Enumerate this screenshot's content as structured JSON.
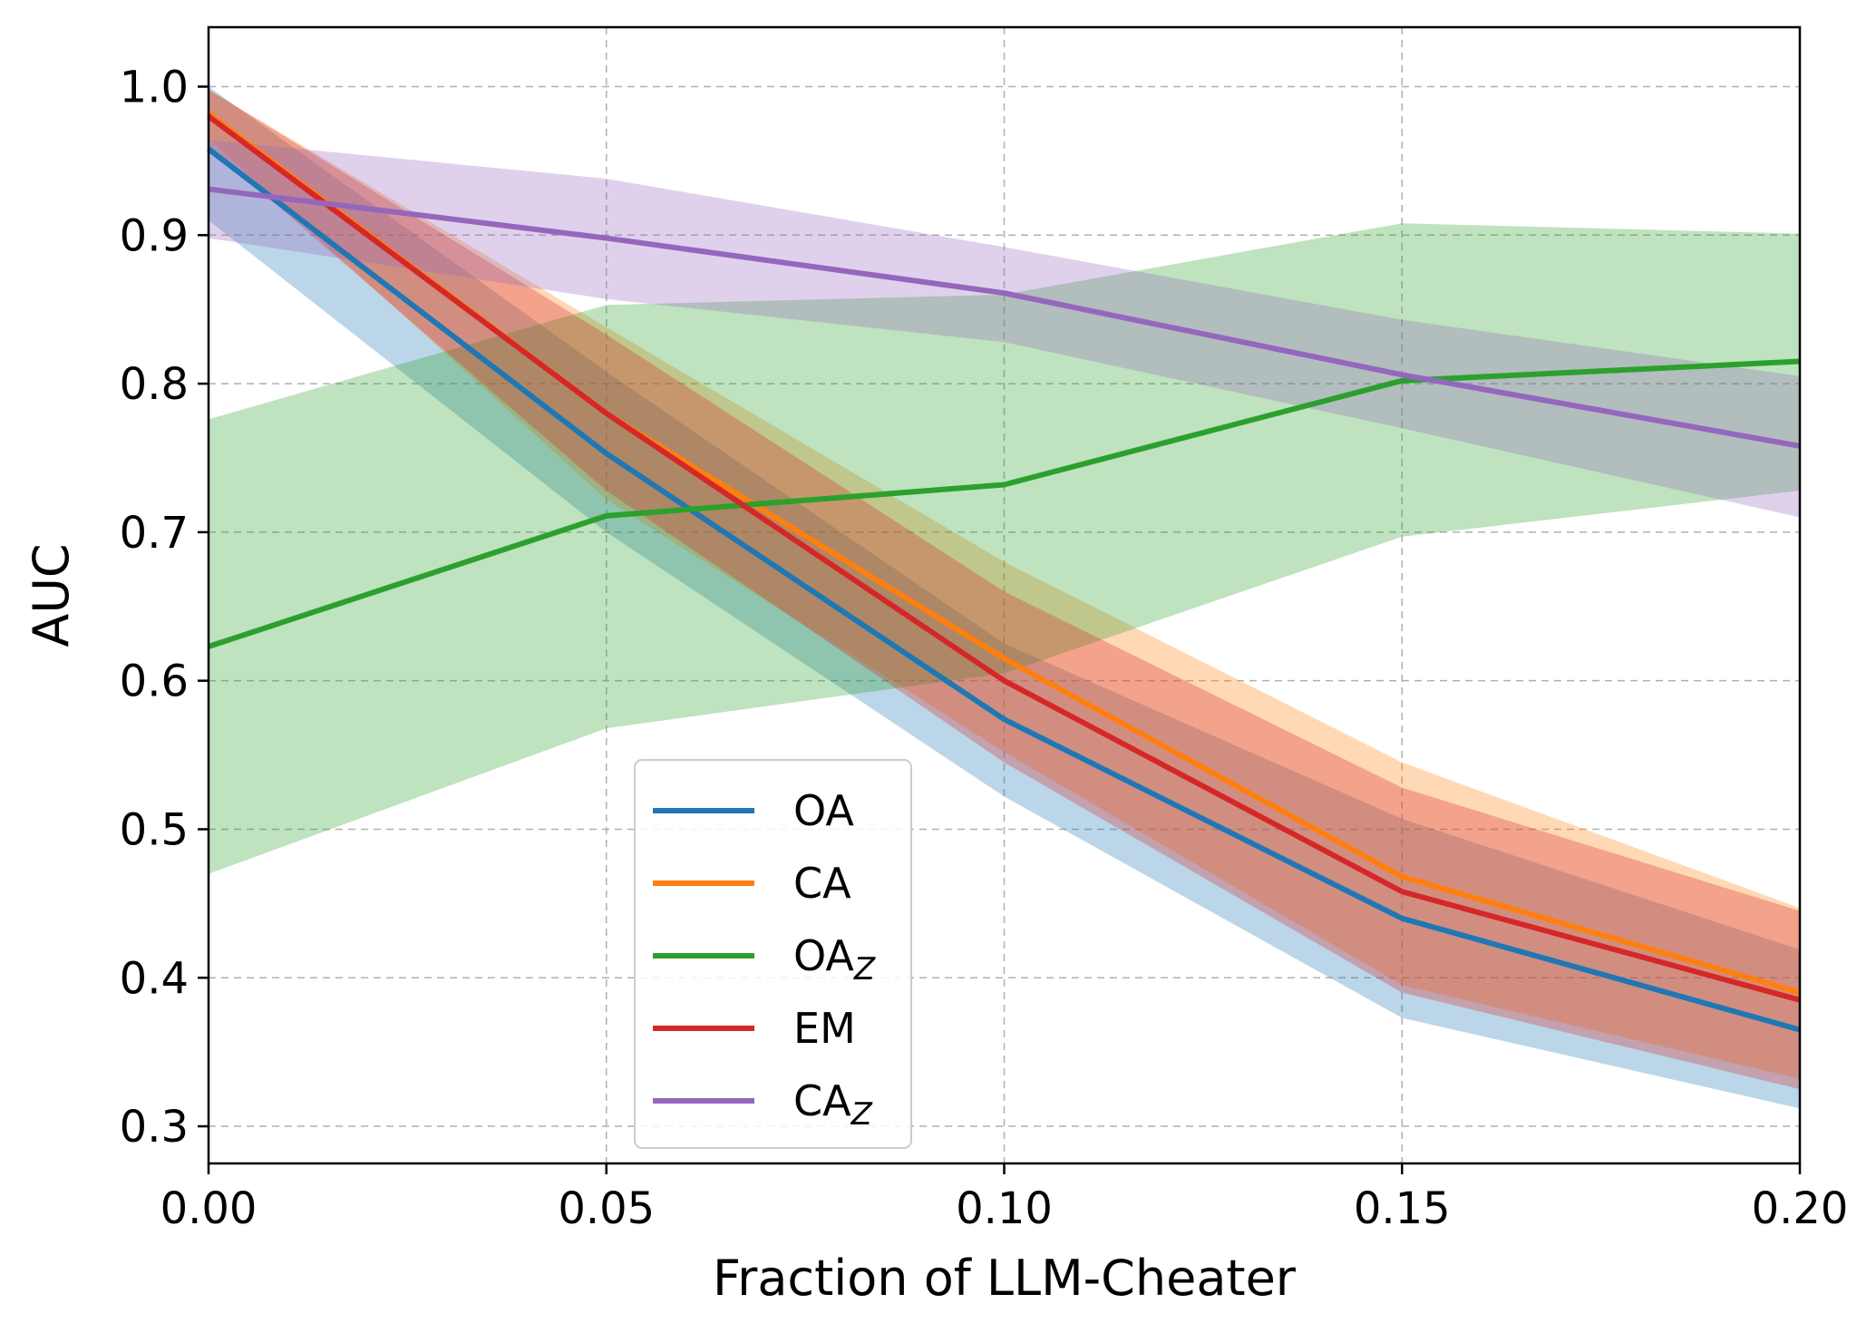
{
  "chart_data": {
    "type": "line",
    "title": "",
    "xlabel": "Fraction of LLM-Cheater",
    "ylabel": "AUC",
    "x": [
      0.0,
      0.05,
      0.1,
      0.15,
      0.2
    ],
    "xlim": [
      0.0,
      0.2
    ],
    "ylim": [
      0.275,
      1.04
    ],
    "xticks": [
      0.0,
      0.05,
      0.1,
      0.15,
      0.2
    ],
    "xtick_labels": [
      "0.00",
      "0.05",
      "0.10",
      "0.15",
      "0.20"
    ],
    "yticks": [
      0.3,
      0.4,
      0.5,
      0.6,
      0.7,
      0.8,
      0.9,
      1.0
    ],
    "ytick_labels": [
      "0.3",
      "0.4",
      "0.5",
      "0.6",
      "0.7",
      "0.8",
      "0.9",
      "1.0"
    ],
    "grid": true,
    "legend_position": "bottom-center",
    "series": [
      {
        "name": "OA",
        "sub": "",
        "color": "#1f77b4",
        "values": [
          0.958,
          0.753,
          0.574,
          0.44,
          0.365
        ],
        "lower": [
          0.91,
          0.7,
          0.522,
          0.373,
          0.312
        ],
        "upper": [
          1.0,
          0.808,
          0.625,
          0.507,
          0.419
        ]
      },
      {
        "name": "CA",
        "sub": "",
        "color": "#ff7f0e",
        "values": [
          0.982,
          0.78,
          0.615,
          0.468,
          0.39
        ],
        "lower": [
          0.965,
          0.722,
          0.552,
          0.395,
          0.332
        ],
        "upper": [
          0.998,
          0.838,
          0.68,
          0.545,
          0.447
        ]
      },
      {
        "name": "OA",
        "sub": "Z",
        "color": "#2ca02c",
        "values": [
          0.623,
          0.711,
          0.732,
          0.802,
          0.815
        ],
        "lower": [
          0.47,
          0.568,
          0.605,
          0.697,
          0.728
        ],
        "upper": [
          0.776,
          0.853,
          0.86,
          0.908,
          0.901
        ]
      },
      {
        "name": "EM",
        "sub": "",
        "color": "#d62728",
        "values": [
          0.98,
          0.78,
          0.6,
          0.458,
          0.385
        ],
        "lower": [
          0.96,
          0.728,
          0.545,
          0.39,
          0.325
        ],
        "upper": [
          0.998,
          0.833,
          0.66,
          0.528,
          0.445
        ]
      },
      {
        "name": "CA",
        "sub": "Z",
        "color": "#9467bd",
        "values": [
          0.931,
          0.898,
          0.861,
          0.806,
          0.758
        ],
        "lower": [
          0.898,
          0.857,
          0.828,
          0.77,
          0.71
        ],
        "upper": [
          0.964,
          0.938,
          0.892,
          0.843,
          0.805
        ]
      }
    ]
  }
}
